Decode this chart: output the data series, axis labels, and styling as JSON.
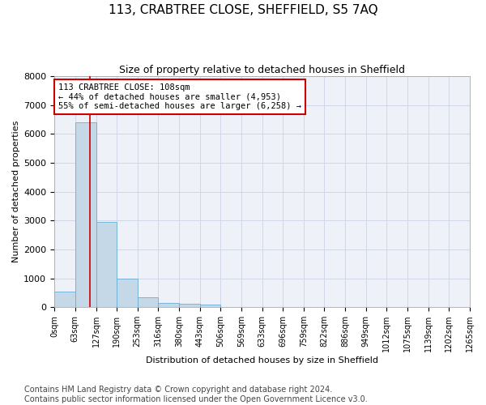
{
  "title": "113, CRABTREE CLOSE, SHEFFIELD, S5 7AQ",
  "subtitle": "Size of property relative to detached houses in Sheffield",
  "xlabel": "Distribution of detached houses by size in Sheffield",
  "ylabel": "Number of detached properties",
  "bin_labels": [
    "0sqm",
    "63sqm",
    "127sqm",
    "190sqm",
    "253sqm",
    "316sqm",
    "380sqm",
    "443sqm",
    "506sqm",
    "569sqm",
    "633sqm",
    "696sqm",
    "759sqm",
    "822sqm",
    "886sqm",
    "949sqm",
    "1012sqm",
    "1075sqm",
    "1139sqm",
    "1202sqm",
    "1265sqm"
  ],
  "bin_edges": [
    0,
    63,
    127,
    190,
    253,
    316,
    380,
    443,
    506,
    569,
    633,
    696,
    759,
    822,
    886,
    949,
    1012,
    1075,
    1139,
    1202,
    1265
  ],
  "bar_values": [
    550,
    6400,
    2950,
    975,
    340,
    155,
    110,
    80,
    20,
    8,
    5,
    3,
    2,
    1,
    1,
    0,
    0,
    0,
    0,
    0
  ],
  "bar_color": "#c5d8e8",
  "bar_edge_color": "#6aaed6",
  "property_size": 108,
  "vline_color": "#cc0000",
  "annotation_text": "113 CRABTREE CLOSE: 108sqm\n← 44% of detached houses are smaller (4,953)\n55% of semi-detached houses are larger (6,258) →",
  "annotation_box_color": "#cc0000",
  "ylim": [
    0,
    8000
  ],
  "yticks": [
    0,
    1000,
    2000,
    3000,
    4000,
    5000,
    6000,
    7000,
    8000
  ],
  "grid_color": "#d0d8e8",
  "background_color": "#eef2f8",
  "footer_text": "Contains HM Land Registry data © Crown copyright and database right 2024.\nContains public sector information licensed under the Open Government Licence v3.0.",
  "title_fontsize": 11,
  "subtitle_fontsize": 9,
  "annotation_fontsize": 7.5,
  "footer_fontsize": 7,
  "ylabel_fontsize": 8,
  "xlabel_fontsize": 8,
  "ytick_fontsize": 8,
  "xtick_fontsize": 7
}
